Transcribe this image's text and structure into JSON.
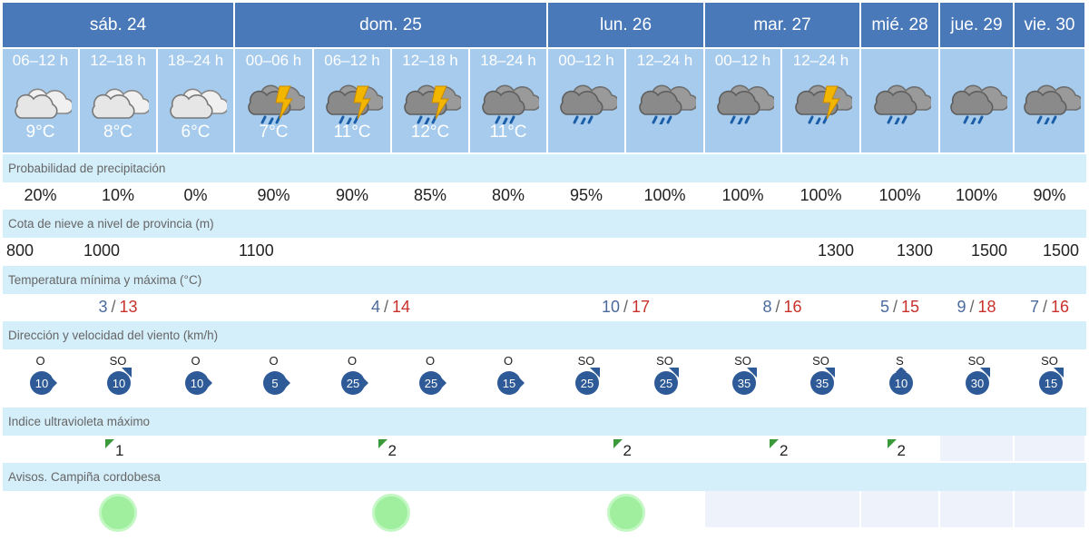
{
  "days": [
    {
      "label": "sáb. 24",
      "min": "3",
      "max": "13",
      "warning": true
    },
    {
      "label": "dom. 25",
      "min": "4",
      "max": "14",
      "warning": true
    },
    {
      "label": "lun. 26",
      "min": "10",
      "max": "17",
      "warning": true
    },
    {
      "label": "mar. 27",
      "min": "8",
      "max": "16",
      "warning": false
    },
    {
      "label": "mié. 28",
      "min": "5",
      "max": "15",
      "warning": false
    },
    {
      "label": "jue. 29",
      "min": "9",
      "max": "18",
      "warning": false
    },
    {
      "label": "vie. 30",
      "min": "7",
      "max": "16",
      "warning": false
    }
  ],
  "temp_separator": "/",
  "slots": [
    {
      "label": "06–12 h",
      "icon": "cloudy-icon",
      "temp": "9°C"
    },
    {
      "label": "12–18 h",
      "icon": "cloudy-icon",
      "temp": "8°C"
    },
    {
      "label": "18–24 h",
      "icon": "cloudy-icon",
      "temp": "6°C"
    },
    {
      "label": "00–06 h",
      "icon": "storm-rain-icon",
      "temp": "7°C"
    },
    {
      "label": "06–12 h",
      "icon": "storm-rain-icon",
      "temp": "11°C"
    },
    {
      "label": "12–18 h",
      "icon": "storm-rain-icon",
      "temp": "12°C"
    },
    {
      "label": "18–24 h",
      "icon": "rain-icon",
      "temp": "11°C"
    },
    {
      "label": "00–12 h",
      "icon": "rain-icon",
      "temp": ""
    },
    {
      "label": "12–24 h",
      "icon": "rain-icon",
      "temp": ""
    },
    {
      "label": "00–12 h",
      "icon": "rain-icon",
      "temp": ""
    },
    {
      "label": "12–24 h",
      "icon": "storm-rain-icon",
      "temp": ""
    },
    {
      "label": "",
      "icon": "rain-icon",
      "temp": ""
    },
    {
      "label": "",
      "icon": "rain-icon",
      "temp": ""
    },
    {
      "label": "",
      "icon": "rain-icon",
      "temp": ""
    }
  ],
  "sections": {
    "precip": "Probabilidad de precipitación",
    "snow": "Cota de nieve a nivel de provincia (m)",
    "temp": "Temperatura mínima y máxima (°C)",
    "wind": "Dirección y velocidad del viento (km/h)",
    "uv": "Indice ultravioleta máximo",
    "warnings": "Avisos. Campiña cordobesa"
  },
  "precip": [
    "20%",
    "10%",
    "0%",
    "90%",
    "90%",
    "85%",
    "80%",
    "95%",
    "100%",
    "100%",
    "100%",
    "100%",
    "100%",
    "90%"
  ],
  "snow": [
    "800",
    "1000",
    "",
    "1100",
    "",
    "",
    "",
    "",
    "",
    "",
    "1300",
    "1300",
    "1500",
    "1500"
  ],
  "wind": [
    {
      "dir": "O",
      "speed": "10"
    },
    {
      "dir": "SO",
      "speed": "10"
    },
    {
      "dir": "O",
      "speed": "10"
    },
    {
      "dir": "O",
      "speed": "5"
    },
    {
      "dir": "O",
      "speed": "25"
    },
    {
      "dir": "O",
      "speed": "25"
    },
    {
      "dir": "O",
      "speed": "15"
    },
    {
      "dir": "SO",
      "speed": "25"
    },
    {
      "dir": "SO",
      "speed": "25"
    },
    {
      "dir": "SO",
      "speed": "35"
    },
    {
      "dir": "SO",
      "speed": "35"
    },
    {
      "dir": "S",
      "speed": "10"
    },
    {
      "dir": "SO",
      "speed": "30"
    },
    {
      "dir": "SO",
      "speed": "15"
    }
  ],
  "uv": [
    "1",
    "2",
    "2",
    "2",
    "2",
    "",
    ""
  ],
  "colors": {
    "header": "#4a79b9",
    "slot": "#a6cbec",
    "section": "#d4eefa",
    "min_temp": "#4a6a9c",
    "max_temp": "#c8312b",
    "wind_badge": "#2e5b97",
    "uv_flag": "#3a9a3a",
    "warning_green": "#9fef9f"
  }
}
